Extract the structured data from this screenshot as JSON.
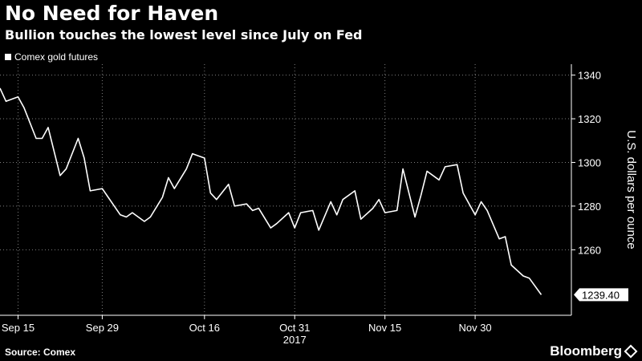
{
  "colors": {
    "background": "#000000",
    "line": "#ffffff",
    "grid": "#7f7f7f"
  },
  "legend": {
    "label": "Comex gold futures"
  },
  "footer": {
    "source": "Source: Comex",
    "brand": "Bloomberg"
  },
  "chart_data": {
    "type": "line",
    "title": "No Need for Haven",
    "subtitle": "Bullion touches the lowest level since July on Fed",
    "ylabel": "U.S. dollars per ounce",
    "xlabel": "",
    "ylim": [
      1230,
      1345
    ],
    "yticks": [
      1260,
      1280,
      1300,
      1320,
      1340
    ],
    "xticks": [
      {
        "label": "Sep 15",
        "day": 3
      },
      {
        "label": "Sep 29",
        "day": 17
      },
      {
        "label": "Oct 16",
        "day": 34
      },
      {
        "label": "Oct 31",
        "day": 49
      },
      {
        "label": "Nov 15",
        "day": 64
      },
      {
        "label": "Nov 30",
        "day": 79
      }
    ],
    "year_label": "2017",
    "xlim": [
      0,
      95
    ],
    "last_value_label": "1239.40",
    "series": [
      {
        "name": "Comex gold futures",
        "points": [
          [
            0,
            1334
          ],
          [
            1,
            1328
          ],
          [
            3,
            1330
          ],
          [
            4,
            1325
          ],
          [
            6,
            1311
          ],
          [
            7,
            1311
          ],
          [
            8,
            1316
          ],
          [
            10,
            1294
          ],
          [
            11,
            1297
          ],
          [
            13,
            1311
          ],
          [
            14,
            1302
          ],
          [
            15,
            1287
          ],
          [
            17,
            1288
          ],
          [
            18,
            1284
          ],
          [
            20,
            1276
          ],
          [
            21,
            1275
          ],
          [
            22,
            1277
          ],
          [
            24,
            1273
          ],
          [
            25,
            1275
          ],
          [
            27,
            1284
          ],
          [
            28,
            1293
          ],
          [
            29,
            1288
          ],
          [
            31,
            1297
          ],
          [
            32,
            1304
          ],
          [
            34,
            1302
          ],
          [
            35,
            1286
          ],
          [
            36,
            1283
          ],
          [
            38,
            1290
          ],
          [
            39,
            1280
          ],
          [
            41,
            1281
          ],
          [
            42,
            1278
          ],
          [
            43,
            1279
          ],
          [
            45,
            1270
          ],
          [
            46,
            1272
          ],
          [
            48,
            1277
          ],
          [
            49,
            1270
          ],
          [
            50,
            1277
          ],
          [
            52,
            1278
          ],
          [
            53,
            1269
          ],
          [
            55,
            1282
          ],
          [
            56,
            1276
          ],
          [
            57,
            1283
          ],
          [
            59,
            1287
          ],
          [
            60,
            1274
          ],
          [
            62,
            1279
          ],
          [
            63,
            1283
          ],
          [
            64,
            1277
          ],
          [
            66,
            1278
          ],
          [
            67,
            1297
          ],
          [
            69,
            1275
          ],
          [
            70,
            1285
          ],
          [
            71,
            1296
          ],
          [
            73,
            1292
          ],
          [
            74,
            1298
          ],
          [
            76,
            1299
          ],
          [
            77,
            1286
          ],
          [
            79,
            1276
          ],
          [
            80,
            1282
          ],
          [
            81,
            1278
          ],
          [
            83,
            1265
          ],
          [
            84,
            1266
          ],
          [
            85,
            1253
          ],
          [
            87,
            1248
          ],
          [
            88,
            1247
          ],
          [
            90,
            1239.4
          ]
        ]
      }
    ]
  }
}
